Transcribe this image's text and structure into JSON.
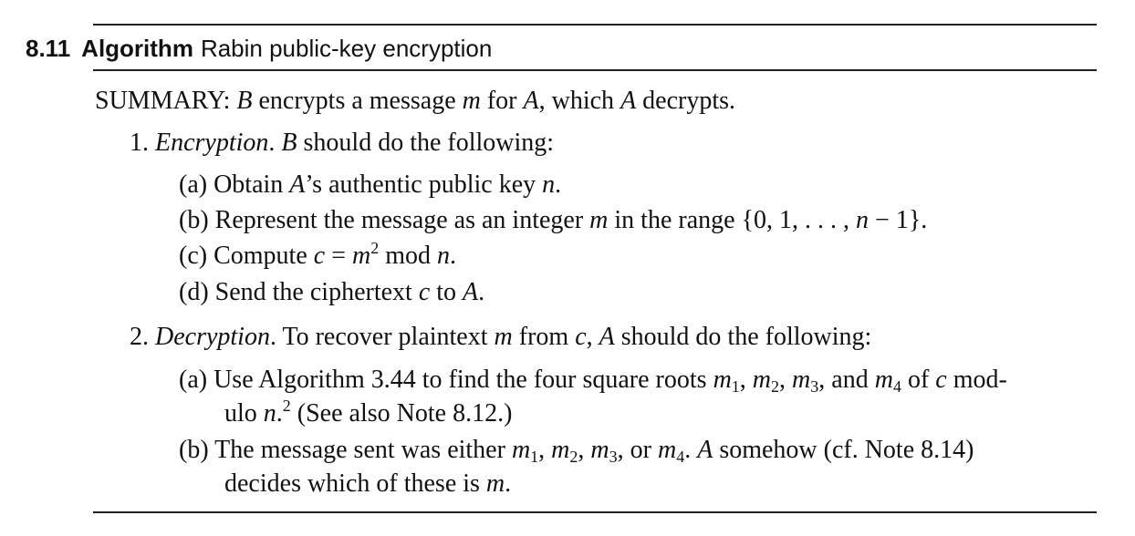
{
  "heading": {
    "number": "8.11",
    "label": "Algorithm",
    "name": "Rabin public-key encryption"
  },
  "summary": {
    "prefix": "SUMMARY: ",
    "B": "B",
    "t1": " encrypts a message ",
    "m": "m",
    "t2": " for ",
    "A1": "A",
    "t3": ", which ",
    "A2": "A",
    "t4": " decrypts."
  },
  "step1": {
    "number": "1.",
    "title": "Encryption",
    "B": "B",
    "text": " should do the following:",
    "a": {
      "label": "(a)",
      "t1": "Obtain ",
      "A": "A",
      "t2": "’s authentic public key ",
      "n": "n",
      "end": "."
    },
    "b": {
      "label": "(b)",
      "t1": "Represent the message as an integer ",
      "m": "m",
      "t2": " in the range ",
      "set_open": "{0, 1, . . . , ",
      "n": "n",
      "set_close": " − 1}."
    },
    "c": {
      "label": "(c)",
      "t1": "Compute ",
      "c": "c",
      "eq": " = ",
      "m": "m",
      "exp": "2",
      "mod": " mod ",
      "n": "n",
      "end": "."
    },
    "d": {
      "label": "(d)",
      "t1": "Send the ciphertext ",
      "c": "c",
      "t2": " to ",
      "A": "A",
      "end": "."
    }
  },
  "step2": {
    "number": "2.",
    "title": "Decryption",
    "t1": " To recover plaintext ",
    "m": "m",
    "t2": " from ",
    "c": "c",
    "t3": ", ",
    "A": "A",
    "t4": " should do the following:",
    "a": {
      "label": "(a)",
      "t1": "Use Algorithm 3.44 to find the four square roots ",
      "m": "m",
      "s1": "1",
      "s2": "2",
      "s3": "3",
      "s4": "4",
      "t2": ", and ",
      "t3": " of ",
      "c": "c",
      "t4": " mod-",
      "t5": "ulo ",
      "n": "n",
      "fn": "2",
      "t6": " (See also Note 8.12.)"
    },
    "b": {
      "label": "(b)",
      "t1": "The message sent was either ",
      "m": "m",
      "s1": "1",
      "s2": "2",
      "s3": "3",
      "s4": "4",
      "or": ", or ",
      "A": "A",
      "t2": " somehow (cf. Note 8.14)",
      "t3": "decides which of these is ",
      "end": "."
    }
  }
}
